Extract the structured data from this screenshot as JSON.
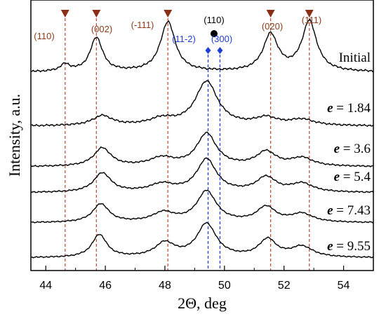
{
  "chart_data": {
    "type": "line",
    "xlabel": "2Θ, deg",
    "ylabel": "Intensity, a.u.",
    "xlim": [
      43.5,
      55
    ],
    "xticks": [
      44,
      46,
      48,
      50,
      52,
      54
    ],
    "grid": false,
    "colors": {
      "line": "#000000",
      "marker_brown": "#8b2e16",
      "text_brown": "#8b3a1a",
      "guide_brown": "#c0543c",
      "marker_blue": "#1f3fd6",
      "marker_black": "#000000"
    },
    "annotations": [
      {
        "label": "(110)",
        "x": 44.65,
        "marker": "triangle-down",
        "color": "brown",
        "guide": true
      },
      {
        "label": "(002)",
        "x": 45.7,
        "marker": "triangle-down",
        "color": "brown",
        "guide": true
      },
      {
        "label": "(-111)",
        "x": 48.1,
        "marker": "triangle-down",
        "color": "brown",
        "guide": true
      },
      {
        "label": "(110)",
        "x": 49.65,
        "marker": "circle",
        "color": "black",
        "guide": false
      },
      {
        "label": "(11-2)",
        "x": 49.45,
        "marker": "diamond",
        "color": "blue",
        "guide": true
      },
      {
        "label": "(300)",
        "x": 49.85,
        "marker": "diamond",
        "color": "blue",
        "guide": true
      },
      {
        "label": "(020)",
        "x": 51.55,
        "marker": "triangle-down",
        "color": "brown",
        "guide": true
      },
      {
        "label": "(111)",
        "x": 52.85,
        "marker": "triangle-down",
        "color": "brown",
        "guide": true
      }
    ],
    "series": [
      {
        "name": "Initial",
        "label_var": "",
        "label_value": "Initial",
        "baseline": 0.0,
        "peaks": [
          {
            "x": 44.65,
            "h": 0.13,
            "w": 0.2
          },
          {
            "x": 45.7,
            "h": 0.65,
            "w": 0.25
          },
          {
            "x": 48.1,
            "h": 0.95,
            "w": 0.3
          },
          {
            "x": 51.55,
            "h": 0.7,
            "w": 0.3
          },
          {
            "x": 52.85,
            "h": 0.95,
            "w": 0.3
          }
        ]
      },
      {
        "name": "e = 1.84",
        "label_var": "e",
        "label_value": " = 1.84",
        "baseline": 0.0,
        "peaks": [
          {
            "x": 45.9,
            "h": 0.2,
            "w": 0.4
          },
          {
            "x": 47.9,
            "h": 0.13,
            "w": 0.5
          },
          {
            "x": 49.4,
            "h": 0.9,
            "w": 0.45
          },
          {
            "x": 51.4,
            "h": 0.15,
            "w": 0.45
          },
          {
            "x": 52.6,
            "h": 0.12,
            "w": 0.5
          }
        ]
      },
      {
        "name": "e = 3.6",
        "label_var": "e",
        "label_value": " = 3.6",
        "baseline": 0.0,
        "peaks": [
          {
            "x": 45.9,
            "h": 0.45,
            "w": 0.35
          },
          {
            "x": 47.9,
            "h": 0.2,
            "w": 0.5
          },
          {
            "x": 49.4,
            "h": 0.8,
            "w": 0.4
          },
          {
            "x": 51.4,
            "h": 0.35,
            "w": 0.4
          },
          {
            "x": 52.6,
            "h": 0.2,
            "w": 0.45
          }
        ]
      },
      {
        "name": "e = 5.4",
        "label_var": "e",
        "label_value": " = 5.4",
        "baseline": 0.0,
        "peaks": [
          {
            "x": 45.9,
            "h": 0.5,
            "w": 0.35
          },
          {
            "x": 47.9,
            "h": 0.2,
            "w": 0.5
          },
          {
            "x": 49.4,
            "h": 0.85,
            "w": 0.4
          },
          {
            "x": 51.4,
            "h": 0.38,
            "w": 0.4
          },
          {
            "x": 52.6,
            "h": 0.22,
            "w": 0.45
          }
        ]
      },
      {
        "name": "e = 7.43",
        "label_var": "e",
        "label_value": " = 7.43",
        "baseline": 0.0,
        "peaks": [
          {
            "x": 45.85,
            "h": 0.55,
            "w": 0.33
          },
          {
            "x": 47.95,
            "h": 0.28,
            "w": 0.45
          },
          {
            "x": 49.4,
            "h": 0.92,
            "w": 0.4
          },
          {
            "x": 51.4,
            "h": 0.45,
            "w": 0.38
          },
          {
            "x": 52.6,
            "h": 0.25,
            "w": 0.45
          }
        ]
      },
      {
        "name": "e = 9.55",
        "label_var": "e",
        "label_value": " = 9.55",
        "baseline": 0.0,
        "peaks": [
          {
            "x": 45.8,
            "h": 0.65,
            "w": 0.3
          },
          {
            "x": 48.0,
            "h": 0.4,
            "w": 0.4
          },
          {
            "x": 49.4,
            "h": 0.95,
            "w": 0.4
          },
          {
            "x": 51.45,
            "h": 0.5,
            "w": 0.35
          },
          {
            "x": 52.6,
            "h": 0.3,
            "w": 0.45
          }
        ]
      }
    ]
  }
}
